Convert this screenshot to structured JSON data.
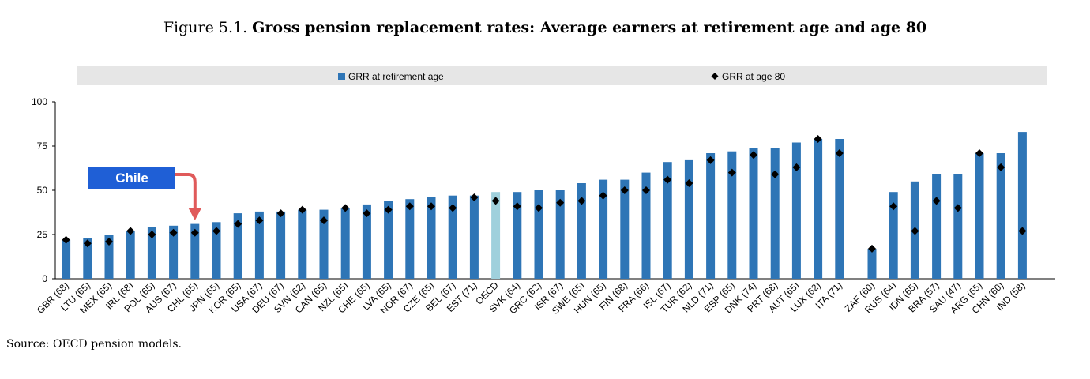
{
  "figure": {
    "label": "Figure 5.1.",
    "title": "Gross pension replacement rates: Average earners at retirement age and age 80"
  },
  "source": "Source: OECD pension models.",
  "callout": {
    "text": "Chile",
    "target": "CHL (65)",
    "color": "#e05a5a",
    "box_color": "#1f5fd6"
  },
  "colors": {
    "bar": "#2e75b6",
    "oecd_bar": "#9fd0dc",
    "marker": "#000000",
    "legend_bg": "#e6e6e6"
  },
  "chart_data": {
    "type": "bar",
    "title": "",
    "xlabel": "",
    "ylabel": "",
    "ylim": [
      0,
      100
    ],
    "yticks": [
      0,
      25,
      50,
      75,
      100
    ],
    "legend_position": "top",
    "gap_after": "ITA (71)",
    "categories": [
      "GBR (68)",
      "LTU (65)",
      "MEX (65)",
      "IRL (68)",
      "POL (65)",
      "AUS (67)",
      "CHL (65)",
      "JPN (65)",
      "KOR (65)",
      "USA (67)",
      "DEU (67)",
      "SVN (62)",
      "CAN (65)",
      "NZL (65)",
      "CHE (65)",
      "LVA (65)",
      "NOR (67)",
      "CZE (65)",
      "BEL (67)",
      "EST (71)",
      "OECD",
      "SVK (64)",
      "GRC (62)",
      "ISR (67)",
      "SWE (65)",
      "HUN (65)",
      "FIN (68)",
      "FRA (66)",
      "ISL (67)",
      "TUR (62)",
      "NLD (71)",
      "ESP (65)",
      "DNK (74)",
      "PRT (68)",
      "AUT (65)",
      "LUX (62)",
      "ITA (71)",
      "ZAF (60)",
      "RUS (64)",
      "IDN (65)",
      "BRA (57)",
      "SAU (47)",
      "ARG (65)",
      "CHN (60)",
      "IND (58)"
    ],
    "series": [
      {
        "name": "GRR at retirement age",
        "type": "bar",
        "values": [
          22,
          23,
          25,
          27,
          29,
          30,
          31,
          32,
          37,
          38,
          38,
          39,
          39,
          40,
          42,
          44,
          45,
          46,
          47,
          47,
          49,
          49,
          50,
          50,
          54,
          56,
          56,
          60,
          66,
          67,
          71,
          72,
          74,
          74,
          77,
          79,
          79,
          17,
          49,
          55,
          59,
          59,
          71,
          71,
          83
        ]
      },
      {
        "name": "GRR at age 80",
        "type": "marker",
        "values": [
          22,
          20,
          21,
          27,
          25,
          26,
          26,
          27,
          31,
          33,
          37,
          39,
          33,
          40,
          37,
          39,
          41,
          41,
          40,
          46,
          44,
          41,
          40,
          43,
          44,
          47,
          50,
          50,
          56,
          54,
          67,
          60,
          70,
          59,
          63,
          79,
          71,
          17,
          41,
          27,
          44,
          40,
          71,
          63,
          27
        ]
      }
    ]
  }
}
